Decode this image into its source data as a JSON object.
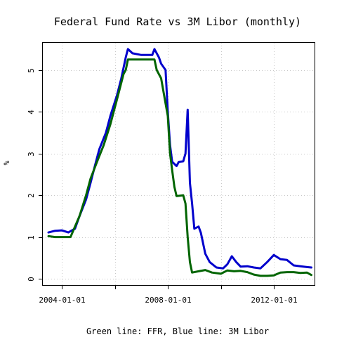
{
  "chart_data": {
    "type": "line",
    "title": "Federal Fund Rate vs 3M Libor  (monthly)",
    "caption": "Green line: FFR, Blue line: 3M Libor",
    "ylabel": "%",
    "xlabel": "",
    "xlim": [
      "2003-04-15",
      "2013-07-15"
    ],
    "ylim": [
      -0.15,
      5.65
    ],
    "x_ticks": [
      {
        "date": "2004-01-01",
        "label": "2004-01-01"
      },
      {
        "date": "2006-01-01",
        "label": ""
      },
      {
        "date": "2008-01-01",
        "label": "2008-01-01"
      },
      {
        "date": "2010-01-01",
        "label": ""
      },
      {
        "date": "2012-01-01",
        "label": "2012-01-01"
      }
    ],
    "y_ticks": [
      0,
      1,
      2,
      3,
      4,
      5
    ],
    "grid": true,
    "colors": {
      "ffr": "#006400",
      "libor": "#0000cc"
    },
    "series": [
      {
        "key": "libor",
        "color": "#0000cc",
        "points": [
          [
            "2003-07-01",
            1.11
          ],
          [
            "2003-10-01",
            1.15
          ],
          [
            "2004-01-01",
            1.16
          ],
          [
            "2004-04-01",
            1.11
          ],
          [
            "2004-07-01",
            1.2
          ],
          [
            "2004-09-01",
            1.5
          ],
          [
            "2004-12-01",
            1.9
          ],
          [
            "2005-02-01",
            2.3
          ],
          [
            "2005-04-01",
            2.7
          ],
          [
            "2005-06-01",
            3.1
          ],
          [
            "2005-09-01",
            3.5
          ],
          [
            "2005-11-01",
            3.9
          ],
          [
            "2006-02-01",
            4.4
          ],
          [
            "2006-04-01",
            4.8
          ],
          [
            "2006-06-01",
            5.3
          ],
          [
            "2006-07-01",
            5.5
          ],
          [
            "2006-09-01",
            5.4
          ],
          [
            "2007-01-01",
            5.36
          ],
          [
            "2007-04-01",
            5.36
          ],
          [
            "2007-06-01",
            5.36
          ],
          [
            "2007-07-01",
            5.5
          ],
          [
            "2007-09-01",
            5.3
          ],
          [
            "2007-10-01",
            5.15
          ],
          [
            "2007-12-01",
            5.0
          ],
          [
            "2008-01-01",
            4.0
          ],
          [
            "2008-02-01",
            3.2
          ],
          [
            "2008-03-01",
            2.8
          ],
          [
            "2008-04-01",
            2.75
          ],
          [
            "2008-05-01",
            2.7
          ],
          [
            "2008-06-01",
            2.8
          ],
          [
            "2008-08-01",
            2.81
          ],
          [
            "2008-09-01",
            3.0
          ],
          [
            "2008-10-01",
            4.05
          ],
          [
            "2008-11-01",
            2.3
          ],
          [
            "2008-12-01",
            1.8
          ],
          [
            "2009-01-01",
            1.2
          ],
          [
            "2009-03-01",
            1.25
          ],
          [
            "2009-04-01",
            1.1
          ],
          [
            "2009-06-01",
            0.6
          ],
          [
            "2009-08-01",
            0.4
          ],
          [
            "2009-11-01",
            0.27
          ],
          [
            "2010-02-01",
            0.25
          ],
          [
            "2010-04-01",
            0.35
          ],
          [
            "2010-06-01",
            0.54
          ],
          [
            "2010-08-01",
            0.4
          ],
          [
            "2010-10-01",
            0.29
          ],
          [
            "2011-01-01",
            0.3
          ],
          [
            "2011-04-01",
            0.27
          ],
          [
            "2011-07-01",
            0.25
          ],
          [
            "2011-10-01",
            0.4
          ],
          [
            "2012-01-01",
            0.57
          ],
          [
            "2012-04-01",
            0.47
          ],
          [
            "2012-07-01",
            0.45
          ],
          [
            "2012-10-01",
            0.32
          ],
          [
            "2013-01-01",
            0.3
          ],
          [
            "2013-04-01",
            0.28
          ],
          [
            "2013-06-01",
            0.27
          ]
        ]
      },
      {
        "key": "ffr",
        "color": "#006400",
        "points": [
          [
            "2003-07-01",
            1.02
          ],
          [
            "2003-10-01",
            1.0
          ],
          [
            "2004-01-01",
            1.0
          ],
          [
            "2004-05-01",
            1.0
          ],
          [
            "2004-07-01",
            1.25
          ],
          [
            "2004-09-01",
            1.5
          ],
          [
            "2004-12-01",
            2.0
          ],
          [
            "2005-02-01",
            2.4
          ],
          [
            "2005-05-01",
            2.8
          ],
          [
            "2005-08-01",
            3.2
          ],
          [
            "2005-11-01",
            3.7
          ],
          [
            "2006-02-01",
            4.3
          ],
          [
            "2006-05-01",
            4.9
          ],
          [
            "2006-06-01",
            5.0
          ],
          [
            "2006-07-01",
            5.25
          ],
          [
            "2007-01-01",
            5.25
          ],
          [
            "2007-07-01",
            5.25
          ],
          [
            "2007-08-01",
            5.0
          ],
          [
            "2007-10-01",
            4.8
          ],
          [
            "2007-12-01",
            4.2
          ],
          [
            "2008-01-01",
            3.9
          ],
          [
            "2008-02-01",
            3.0
          ],
          [
            "2008-03-01",
            2.6
          ],
          [
            "2008-04-01",
            2.2
          ],
          [
            "2008-05-01",
            1.98
          ],
          [
            "2008-08-01",
            2.0
          ],
          [
            "2008-09-01",
            1.8
          ],
          [
            "2008-10-01",
            1.0
          ],
          [
            "2008-11-01",
            0.4
          ],
          [
            "2008-12-01",
            0.15
          ],
          [
            "2009-03-01",
            0.18
          ],
          [
            "2009-06-01",
            0.21
          ],
          [
            "2009-09-01",
            0.15
          ],
          [
            "2010-01-01",
            0.12
          ],
          [
            "2010-04-01",
            0.2
          ],
          [
            "2010-07-01",
            0.18
          ],
          [
            "2010-10-01",
            0.19
          ],
          [
            "2011-01-01",
            0.16
          ],
          [
            "2011-04-01",
            0.1
          ],
          [
            "2011-07-01",
            0.07
          ],
          [
            "2011-10-01",
            0.07
          ],
          [
            "2012-01-01",
            0.08
          ],
          [
            "2012-04-01",
            0.15
          ],
          [
            "2012-07-01",
            0.16
          ],
          [
            "2012-10-01",
            0.16
          ],
          [
            "2013-01-01",
            0.14
          ],
          [
            "2013-04-01",
            0.15
          ],
          [
            "2013-06-01",
            0.09
          ]
        ]
      }
    ]
  }
}
